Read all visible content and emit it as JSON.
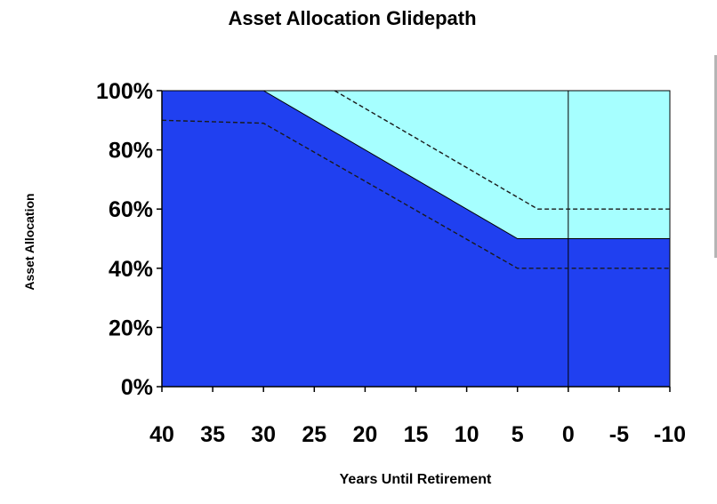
{
  "chart_data": {
    "type": "area",
    "title": "Asset Allocation Glidepath",
    "xlabel": "Years Until Retirement",
    "ylabel": "Asset Allocation",
    "xlim": [
      40,
      -10
    ],
    "ylim": [
      0,
      100
    ],
    "x_ticks": [
      40,
      35,
      30,
      25,
      20,
      15,
      10,
      5,
      0,
      -5,
      -10
    ],
    "x_tick_labels": [
      "40",
      "35",
      "30",
      "25",
      "20",
      "15",
      "10",
      "5",
      "0",
      "-5",
      "-10"
    ],
    "y_ticks": [
      0,
      20,
      40,
      60,
      80,
      100
    ],
    "y_tick_labels": [
      "0%",
      "20%",
      "40%",
      "60%",
      "80%",
      "100%"
    ],
    "grid": false,
    "series": [
      {
        "style": "solid-area",
        "color": "#2040f0",
        "points": [
          [
            40,
            100
          ],
          [
            30,
            100
          ],
          [
            5,
            50
          ],
          [
            -10,
            50
          ]
        ]
      },
      {
        "style": "dashed-line",
        "color": "#1a1a1a",
        "points": [
          [
            40,
            90
          ],
          [
            30,
            89
          ],
          [
            5,
            40
          ],
          [
            -10,
            40
          ]
        ]
      },
      {
        "style": "dashed-line",
        "color": "#1a1a1a",
        "points": [
          [
            23,
            100
          ],
          [
            3,
            60
          ],
          [
            -10,
            60
          ]
        ]
      }
    ],
    "background_color": "#a6ffff",
    "reference_line": {
      "x": 0,
      "color": "#000000"
    }
  }
}
